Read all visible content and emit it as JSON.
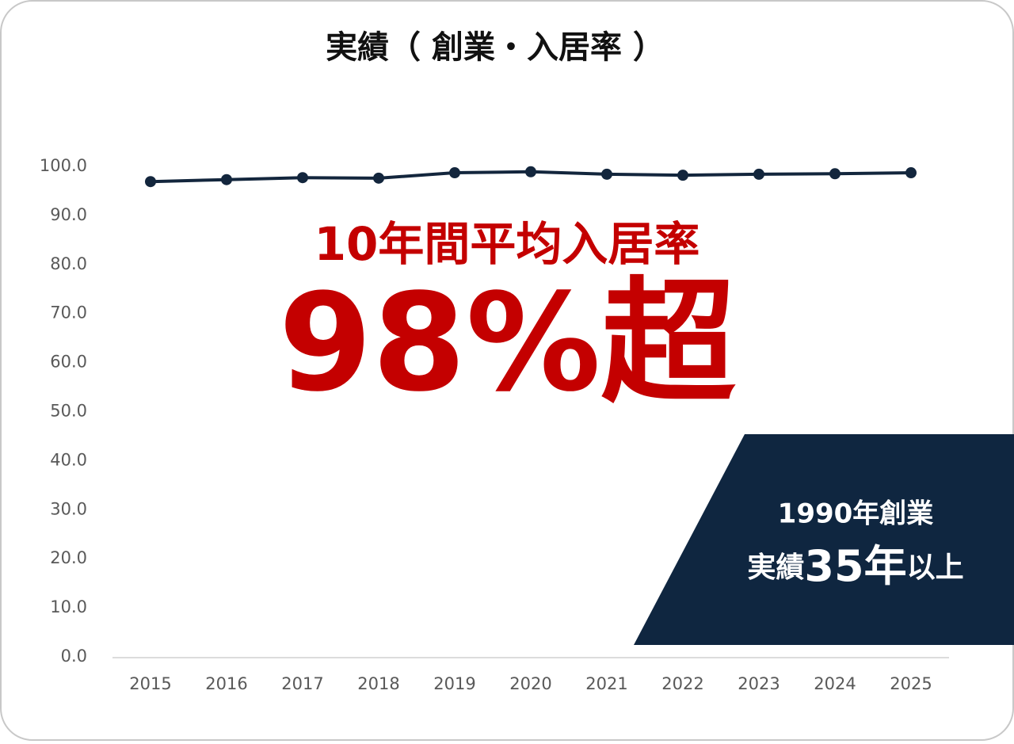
{
  "chart_data": {
    "type": "line",
    "title": "実績（ 創業・入居率 ）",
    "categories": [
      "2015",
      "2016",
      "2017",
      "2018",
      "2019",
      "2020",
      "2021",
      "2022",
      "2023",
      "2024",
      "2025"
    ],
    "series": [
      {
        "color": "#13263d",
        "values": [
          96.9,
          97.3,
          97.7,
          97.6,
          98.7,
          98.9,
          98.4,
          98.2,
          98.4,
          98.5,
          98.7
        ]
      }
    ],
    "ylim": [
      0,
      100
    ],
    "yticks": [
      {
        "value": 0,
        "label": "0.0"
      },
      {
        "value": 10,
        "label": "10.0"
      },
      {
        "value": 20,
        "label": "20.0"
      },
      {
        "value": 30,
        "label": "30.0"
      },
      {
        "value": 40,
        "label": "40.0"
      },
      {
        "value": 50,
        "label": "50.0"
      },
      {
        "value": 60,
        "label": "60.0"
      },
      {
        "value": 70,
        "label": "70.0"
      },
      {
        "value": 80,
        "label": "80.0"
      },
      {
        "value": 90,
        "label": "90.0"
      },
      {
        "value": 100,
        "label": "100.0"
      }
    ],
    "grid": false,
    "annotations": [
      "10年間平均入居率",
      "98%超",
      "1990年創業",
      "実績",
      "35年",
      "以上"
    ]
  }
}
